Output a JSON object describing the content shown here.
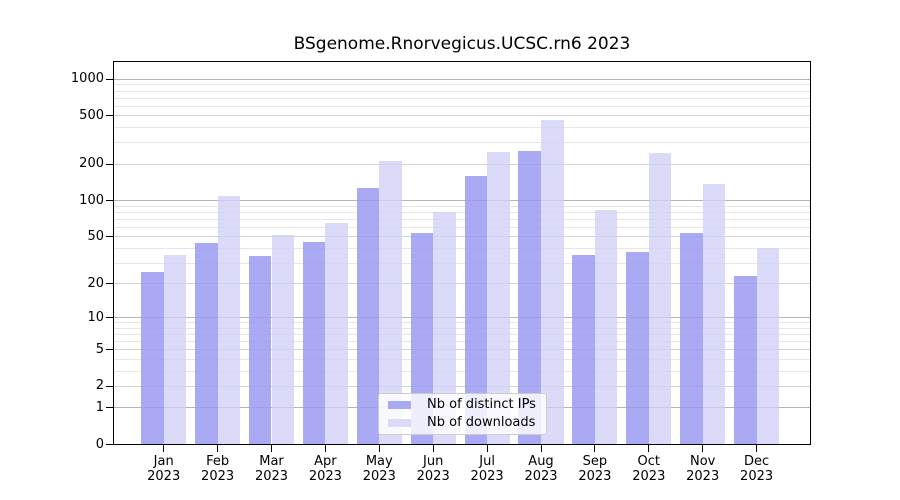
{
  "title": "BSgenome.Rnorvegicus.UCSC.rn6 2023",
  "legend": {
    "items": [
      {
        "label": "Nb of distinct IPs",
        "color": "#a9a9f4"
      },
      {
        "label": "Nb of downloads",
        "color": "#dbdbf9"
      }
    ]
  },
  "chart_data": {
    "type": "bar",
    "title": "BSgenome.Rnorvegicus.UCSC.rn6 2023",
    "categories": [
      "Jan",
      "Feb",
      "Mar",
      "Apr",
      "May",
      "Jun",
      "Jul",
      "Aug",
      "Sep",
      "Oct",
      "Nov",
      "Dec"
    ],
    "x_sub_label": "2023",
    "series": [
      {
        "name": "Nb of distinct IPs",
        "color": "#a9a9f4",
        "values": [
          25,
          44,
          34,
          45,
          126,
          53,
          157,
          255,
          35,
          37,
          53,
          23
        ]
      },
      {
        "name": "Nb of downloads",
        "color": "#dbdbf9",
        "values": [
          35,
          108,
          51,
          65,
          210,
          79,
          250,
          460,
          83,
          245,
          135,
          40
        ]
      }
    ],
    "y_scale": "log10(1+x)",
    "y_ticks": [
      0,
      1,
      2,
      5,
      10,
      20,
      50,
      100,
      200,
      500,
      1000
    ],
    "ylim": [
      0,
      1380
    ],
    "grid": true,
    "legend_position": "lower-center"
  }
}
